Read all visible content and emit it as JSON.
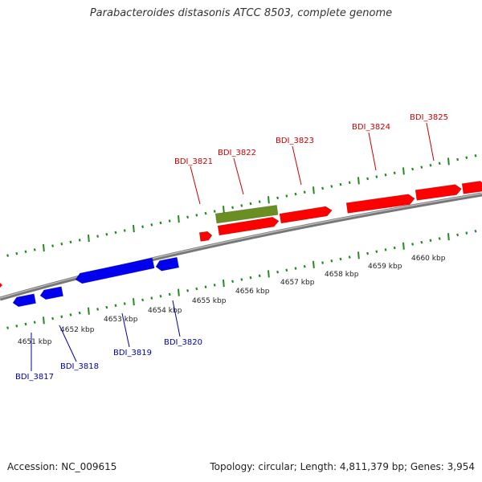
{
  "title": "Parabacteroides distasonis ATCC 8503, complete genome",
  "footer": {
    "accession": "Accession: NC_009615",
    "summary": "Topology: circular; Length: 4,811,379 bp; Genes: 3,954"
  },
  "colors": {
    "forward_gene": "#ff0000",
    "forward_label": "#cc0000",
    "rna_gene": "#6b8e23",
    "reverse_gene": "#0000ee",
    "reverse_label": "#0000aa",
    "tick": "#228b22",
    "backbone": "#888888"
  },
  "scale_labels": [
    "4651 kbp",
    "4652 kbp",
    "4653 kbp",
    "4654 kbp",
    "4655 kbp",
    "4656 kbp",
    "4657 kbp",
    "4658 kbp",
    "4659 kbp",
    "4660 kbp"
  ],
  "gene_labels_forward": [
    "BDI_3821",
    "BDI_3822",
    "BDI_3823",
    "BDI_3824",
    "BDI_3825"
  ],
  "gene_labels_reverse": [
    "BDI_3817",
    "BDI_3818",
    "BDI_3819",
    "BDI_3820"
  ]
}
